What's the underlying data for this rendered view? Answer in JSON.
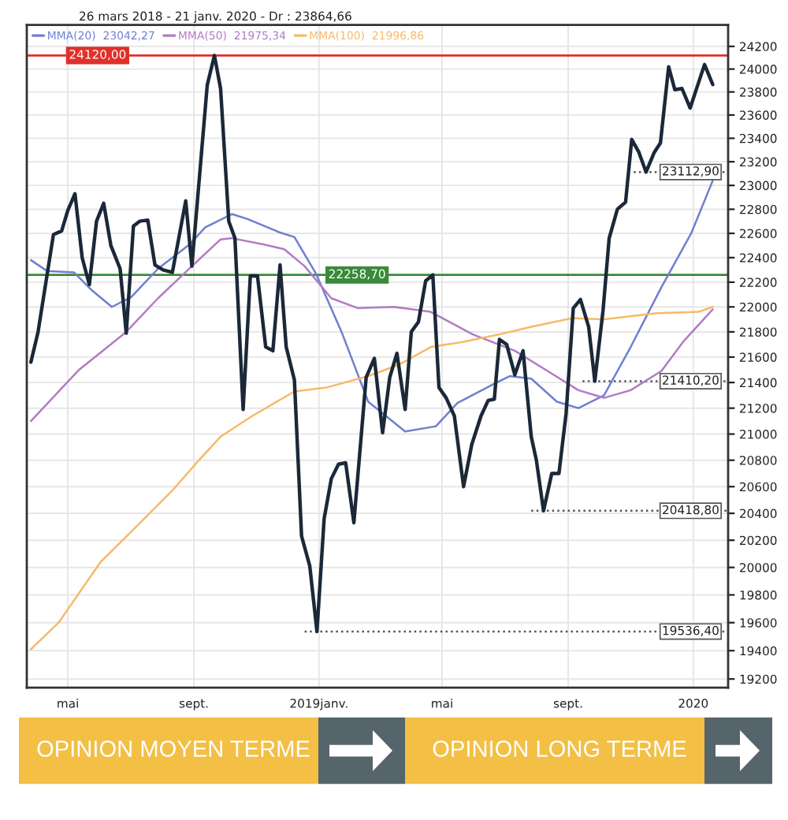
{
  "chart_data": {
    "type": "line",
    "title": "26 mars 2018 - 21 janv. 2020 - Dr : 23864,66",
    "log": true,
    "xlim": [
      "2018-03-22",
      "2020-02-04"
    ],
    "ylim": [
      19140,
      24390
    ],
    "xticks": [
      {
        "value": "2018-05-01",
        "label": "mai"
      },
      {
        "value": "2018-09-01",
        "label": "sept."
      },
      {
        "value": "2019-01-01",
        "label": "2019janv."
      },
      {
        "value": "2019-05-01",
        "label": "mai"
      },
      {
        "value": "2019-09-01",
        "label": "sept."
      },
      {
        "value": "2020-01-01",
        "label": "2020"
      }
    ],
    "yticks": [
      19200,
      19400,
      19600,
      19800,
      20000,
      20200,
      20400,
      20600,
      20800,
      21000,
      21200,
      21400,
      21600,
      21800,
      22000,
      22200,
      22400,
      22600,
      22800,
      23000,
      23200,
      23400,
      23600,
      23800,
      24000,
      24200
    ],
    "grid": true,
    "legend": "top left",
    "series": [
      {
        "color": "#1b2838",
        "x": [
          "2018-03-26",
          "2018-04-02",
          "2018-04-17",
          "2018-04-25",
          "2018-05-01",
          "2018-05-08",
          "2018-05-15",
          "2018-05-22",
          "2018-05-29",
          "2018-06-05",
          "2018-06-12",
          "2018-06-21",
          "2018-06-27",
          "2018-07-04",
          "2018-07-10",
          "2018-07-18",
          "2018-07-25",
          "2018-08-02",
          "2018-08-11",
          "2018-08-24",
          "2018-08-30",
          "2018-09-14",
          "2018-09-21",
          "2018-09-27",
          "2018-10-05",
          "2018-10-11",
          "2018-10-19",
          "2018-10-26",
          "2018-11-02",
          "2018-11-10",
          "2018-11-17",
          "2018-11-24",
          "2018-11-30",
          "2018-12-08",
          "2018-12-15",
          "2018-12-23",
          "2018-12-30",
          "2019-01-06",
          "2019-01-13",
          "2019-01-20",
          "2019-01-27",
          "2019-02-04",
          "2019-02-16",
          "2019-02-24",
          "2019-03-04",
          "2019-03-11",
          "2019-03-18",
          "2019-03-26",
          "2019-04-01",
          "2019-04-08",
          "2019-04-15",
          "2019-04-22",
          "2019-04-28",
          "2019-05-05",
          "2019-05-13",
          "2019-05-22",
          "2019-05-30",
          "2019-06-08",
          "2019-06-15",
          "2019-06-21",
          "2019-06-26",
          "2019-07-03",
          "2019-07-11",
          "2019-07-19",
          "2019-07-27",
          "2019-08-01",
          "2019-08-08",
          "2019-08-16",
          "2019-08-23",
          "2019-08-30",
          "2019-09-06",
          "2019-09-13",
          "2019-09-21",
          "2019-09-27",
          "2019-10-05",
          "2019-10-11",
          "2019-10-19",
          "2019-10-27",
          "2019-11-02",
          "2019-11-09",
          "2019-11-16",
          "2019-11-24",
          "2019-11-30",
          "2019-12-08",
          "2019-12-14",
          "2019-12-21",
          "2019-12-29",
          "2020-01-05",
          "2020-01-12",
          "2020-01-20"
        ],
        "values": [
          21560,
          21800,
          22590,
          22620,
          22790,
          22930,
          22400,
          22180,
          22700,
          22850,
          22500,
          22310,
          21790,
          22660,
          22700,
          22710,
          22340,
          22300,
          22280,
          22870,
          22330,
          23860,
          24120,
          23830,
          22700,
          22560,
          21190,
          22250,
          22250,
          21680,
          21650,
          22340,
          21680,
          21420,
          20230,
          20010,
          19536.4,
          20360,
          20660,
          20770,
          20780,
          20330,
          21440,
          21590,
          21010,
          21440,
          21630,
          21190,
          21800,
          21880,
          22210,
          22258.7,
          21360,
          21280,
          21140,
          20600,
          20920,
          21140,
          21260,
          21270,
          21740,
          21700,
          21460,
          21650,
          20980,
          20800,
          20418.8,
          20700,
          20700,
          21160,
          21990,
          22060,
          21840,
          21410.2,
          21970,
          22560,
          22800,
          22860,
          23390,
          23280,
          23112.9,
          23280,
          23360,
          24020,
          23820,
          23830,
          23660,
          23850,
          24040,
          23865
        ]
      },
      {
        "name": "MMA(20)  23042,27",
        "color": "#6f7fd0",
        "x": [
          "2018-03-26",
          "2018-04-11",
          "2018-05-07",
          "2018-05-25",
          "2018-06-13",
          "2018-07-02",
          "2018-07-28",
          "2018-08-28",
          "2018-09-12",
          "2018-10-08",
          "2018-10-23",
          "2018-11-23",
          "2018-12-08",
          "2018-12-29",
          "2019-01-23",
          "2019-02-18",
          "2019-03-26",
          "2019-04-25",
          "2019-05-16",
          "2019-06-21",
          "2019-07-06",
          "2019-07-27",
          "2019-08-21",
          "2019-09-11",
          "2019-10-06",
          "2019-11-01",
          "2019-12-01",
          "2019-12-30",
          "2020-01-20"
        ],
        "values": [
          22380,
          22290,
          22280,
          22130,
          22000,
          22080,
          22310,
          22510,
          22650,
          22760,
          22720,
          22610,
          22570,
          22270,
          21800,
          21250,
          21020,
          21060,
          21240,
          21390,
          21450,
          21430,
          21250,
          21200,
          21300,
          21680,
          22160,
          22600,
          23040
        ]
      },
      {
        "name": "MMA(50)  21975,34",
        "color": "#b07cc6",
        "x": [
          "2018-03-26",
          "2018-05-12",
          "2018-06-27",
          "2018-07-28",
          "2018-08-30",
          "2018-09-27",
          "2018-10-08",
          "2018-11-07",
          "2018-11-28",
          "2018-12-18",
          "2019-01-13",
          "2019-02-08",
          "2019-03-15",
          "2019-04-20",
          "2019-05-31",
          "2019-07-11",
          "2019-08-06",
          "2019-09-11",
          "2019-10-06",
          "2019-11-01",
          "2019-12-01",
          "2019-12-22",
          "2020-01-20"
        ],
        "values": [
          21100,
          21500,
          21800,
          22070,
          22330,
          22550,
          22560,
          22510,
          22470,
          22330,
          22070,
          21990,
          22000,
          21960,
          21780,
          21650,
          21520,
          21340,
          21280,
          21340,
          21490,
          21720,
          21980
        ]
      },
      {
        "name": "MMA(100)  21996,86",
        "color": "#f7b96a",
        "x": [
          "2018-03-26",
          "2018-04-22",
          "2018-06-02",
          "2018-07-08",
          "2018-08-12",
          "2018-09-07",
          "2018-09-27",
          "2018-10-28",
          "2018-12-08",
          "2019-01-08",
          "2019-02-18",
          "2019-03-20",
          "2019-04-20",
          "2019-05-21",
          "2019-06-26",
          "2019-07-27",
          "2019-09-05",
          "2019-10-06",
          "2019-11-26",
          "2020-01-06",
          "2020-01-20"
        ],
        "values": [
          19410,
          19600,
          20040,
          20310,
          20580,
          20810,
          20980,
          21140,
          21330,
          21360,
          21450,
          21540,
          21680,
          21720,
          21780,
          21840,
          21910,
          21900,
          21950,
          21960,
          22000
        ]
      }
    ],
    "ref_lines": [
      {
        "axis": "y",
        "value": 24120,
        "label": "24120,00",
        "color": "#e0302a",
        "line_style": "solid"
      },
      {
        "axis": "y",
        "value": 22258.7,
        "label": "22258,70",
        "color": "#3a8a3a",
        "line_style": "solid"
      },
      {
        "axis": "y",
        "value": 23112.9,
        "label": "23112,90",
        "color": "#555555",
        "line_style": "dotted"
      },
      {
        "axis": "y",
        "value": 21410.2,
        "label": "21410,20",
        "color": "#555555",
        "line_style": "dotted"
      },
      {
        "axis": "y",
        "value": 20418.8,
        "label": "20418,80",
        "color": "#555555",
        "line_style": "dotted"
      },
      {
        "axis": "y",
        "value": 19536.4,
        "label": "19536,40",
        "color": "#555555",
        "line_style": "dotted"
      }
    ],
    "annotations": [
      "OPINION MOYEN TERME",
      "OPINION LONG TERME"
    ]
  }
}
